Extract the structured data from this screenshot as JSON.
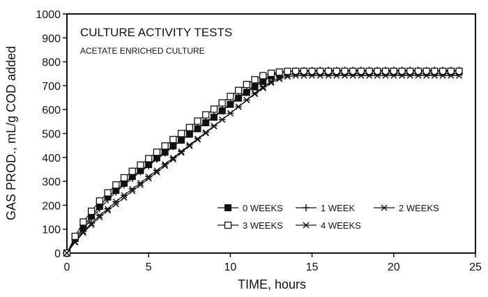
{
  "chart_data": {
    "type": "line",
    "title": "CULTURE ACTIVITY TESTS",
    "subtitle": "ACETATE ENRICHED CULTURE",
    "xlabel": "TIME, hours",
    "ylabel": "GAS PROD., mL/g COD added",
    "xlim": [
      0,
      25
    ],
    "ylim": [
      0,
      1000
    ],
    "xticks": [
      0,
      5,
      10,
      15,
      20,
      25
    ],
    "yticks": [
      0,
      100,
      200,
      300,
      400,
      500,
      600,
      700,
      800,
      900,
      1000
    ],
    "grid": false,
    "legend_position": "lower-right",
    "x": [
      0,
      0.5,
      1,
      1.5,
      2,
      2.5,
      3,
      3.5,
      4,
      4.5,
      5,
      5.5,
      6,
      6.5,
      7,
      7.5,
      8,
      8.5,
      9,
      9.5,
      10,
      10.5,
      11,
      11.5,
      12,
      12.5,
      13,
      13.5,
      14,
      14.5,
      15,
      15.5,
      16,
      16.5,
      17,
      17.5,
      18,
      18.5,
      19,
      19.5,
      20,
      20.5,
      21,
      21.5,
      22,
      22.5,
      23,
      23.5,
      24
    ],
    "series": [
      {
        "name": "0 WEEKS",
        "marker": "filled-square",
        "values": [
          0,
          62,
          110,
          155,
          195,
          235,
          262,
          292,
          320,
          345,
          370,
          398,
          422,
          448,
          472,
          497,
          520,
          545,
          568,
          595,
          622,
          648,
          672,
          695,
          718,
          740,
          752,
          758,
          760,
          760,
          760,
          760,
          760,
          760,
          760,
          760,
          760,
          760,
          760,
          760,
          760,
          760,
          760,
          760,
          760,
          760,
          760,
          760,
          760
        ]
      },
      {
        "name": "1 WEEK",
        "marker": "plus",
        "values": [
          0,
          55,
          100,
          145,
          185,
          222,
          255,
          285,
          312,
          340,
          365,
          392,
          418,
          445,
          472,
          498,
          522,
          548,
          572,
          598,
          625,
          652,
          678,
          702,
          725,
          745,
          755,
          760,
          762,
          763,
          764,
          765,
          765,
          765,
          765,
          765,
          765,
          765,
          765,
          765,
          765,
          765,
          765,
          765,
          765,
          765,
          765,
          765,
          765
        ]
      },
      {
        "name": "2 WEEKS",
        "marker": "asterisk",
        "values": [
          0,
          48,
          90,
          125,
          158,
          185,
          215,
          242,
          268,
          293,
          320,
          345,
          372,
          398,
          425,
          452,
          478,
          505,
          532,
          558,
          585,
          612,
          640,
          668,
          695,
          718,
          735,
          745,
          750,
          752,
          752,
          752,
          752,
          752,
          752,
          752,
          752,
          752,
          752,
          752,
          752,
          752,
          752,
          752,
          752,
          752,
          752,
          752,
          752
        ]
      },
      {
        "name": "3 WEEKS",
        "marker": "open-square",
        "values": [
          0,
          70,
          130,
          175,
          218,
          252,
          285,
          315,
          342,
          368,
          395,
          422,
          448,
          475,
          500,
          525,
          552,
          578,
          602,
          628,
          655,
          680,
          705,
          725,
          742,
          752,
          757,
          760,
          760,
          760,
          760,
          760,
          760,
          760,
          760,
          760,
          760,
          760,
          760,
          760,
          760,
          760,
          760,
          760,
          760,
          760,
          760,
          760,
          760
        ]
      },
      {
        "name": "4 WEEKS",
        "marker": "x",
        "values": [
          0,
          45,
          85,
          118,
          150,
          178,
          205,
          232,
          260,
          285,
          312,
          338,
          365,
          392,
          420,
          448,
          475,
          502,
          530,
          558,
          585,
          612,
          640,
          665,
          690,
          712,
          728,
          738,
          742,
          742,
          742,
          742,
          742,
          742,
          742,
          742,
          742,
          742,
          742,
          742,
          742,
          742,
          742,
          742,
          742,
          742,
          742,
          742,
          742
        ]
      }
    ]
  }
}
